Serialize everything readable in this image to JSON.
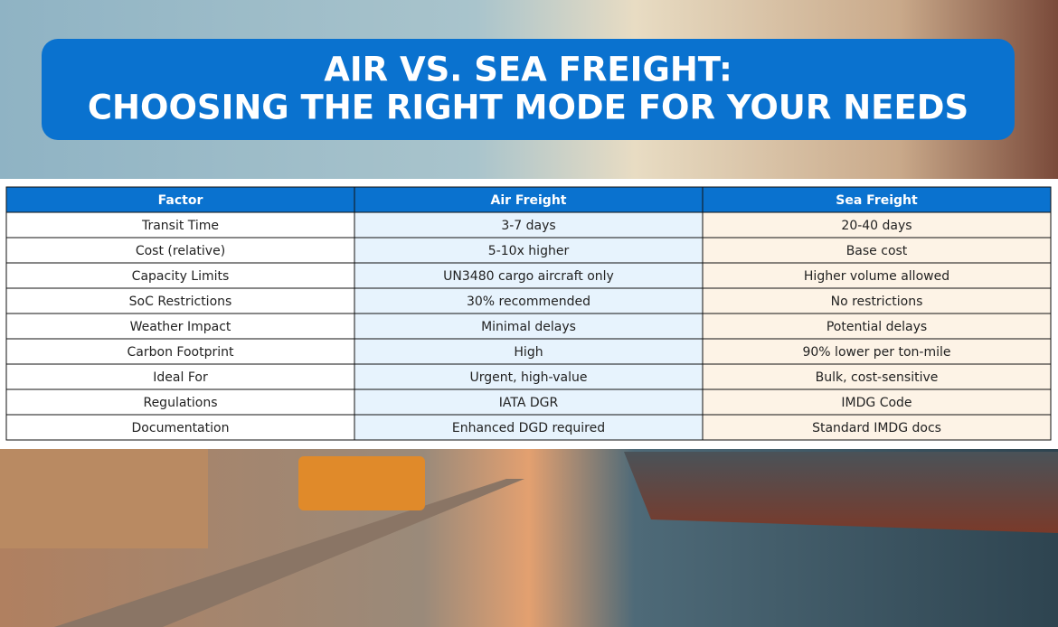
{
  "header": {
    "title": [
      "AIR VS. SEA FREIGHT:",
      "CHOOSING THE RIGHT MODE FOR YOUR NEEDS"
    ]
  },
  "table": {
    "columns": [
      "Factor",
      "Air Freight",
      "Sea Freight"
    ],
    "rows": [
      [
        "Transit Time",
        "3-7 days",
        "20-40 days"
      ],
      [
        "Cost (relative)",
        "5-10x higher",
        "Base cost"
      ],
      [
        "Capacity Limits",
        "UN3480 cargo aircraft only",
        "Higher volume allowed"
      ],
      [
        "SoC Restrictions",
        "30% recommended",
        "No restrictions"
      ],
      [
        "Weather Impact",
        "Minimal delays",
        "Potential delays"
      ],
      [
        "Carbon Footprint",
        "High",
        "90% lower per ton-mile"
      ],
      [
        "Ideal For",
        "Urgent, high-value",
        "Bulk, cost-sensitive"
      ],
      [
        "Regulations",
        "IATA DGR",
        "IMDG Code"
      ],
      [
        "Documentation",
        "Enhanced DGD required",
        "Standard IMDG docs"
      ]
    ]
  }
}
